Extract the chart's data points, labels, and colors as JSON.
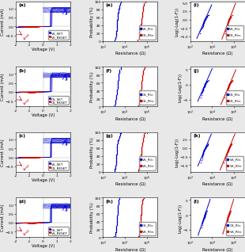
{
  "background": "#e8e8e8",
  "panel_bg": "#ffffff",
  "blue": "#0000cc",
  "red": "#cc0000",
  "rows": 4,
  "cols": 3,
  "panel_labels": [
    "(a)",
    "(b)",
    "(c)",
    "(d)",
    "(e)",
    "(f)",
    "(g)",
    "(h)",
    "(i)",
    "(j)",
    "(k)",
    "(l)"
  ],
  "col1_ylabel": "Current (mA)",
  "col1_xlabel": "Voltage (V)",
  "col2_ylabel": "Probability (%)",
  "col2_xlabel": "Resistance (Ω)",
  "col3_ylabel": "Log(-Log(1-F))",
  "col3_xlabel": "Resistance (Ω)",
  "iv_legends": [
    [
      "VS_SET",
      "VS_RESET"
    ],
    [
      "CS_SET",
      "CS_RESET"
    ],
    [
      "VS_SET",
      "CS_RESET"
    ],
    [
      "CS_SET",
      "VS_RESET"
    ]
  ],
  "prob_legends": [
    [
      "VS_R$_{lrs}$",
      "CS_R$_{hrs}$"
    ],
    [
      "CS_R$_{lrs}$",
      "CS_R$_{hrs}$"
    ],
    [
      "VS_R$_{lrs}$",
      "VS_R$_{hrs}$"
    ],
    [
      "CS_R$_{lrs}$",
      "VS_R$_{hrs}$"
    ]
  ],
  "weibull_legends": [
    [
      "VS_R$_{lrs}$",
      "CS_R$_{hrs}$"
    ],
    [
      "CS_R$_{lrs}$",
      "CS_R$_{hrs}$"
    ],
    [
      "VS_R$_{lrs}$",
      "VS_R$_{hrs}$"
    ],
    [
      "CS_R$_{lrs}$",
      "VS_R$_{hrs}$"
    ]
  ]
}
